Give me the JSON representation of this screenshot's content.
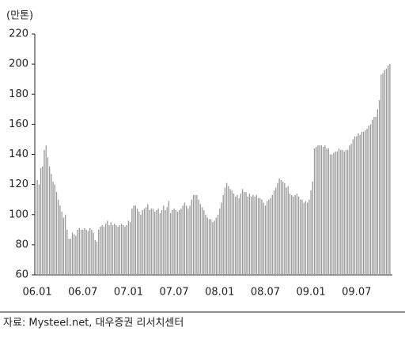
{
  "chart_data": {
    "type": "bar",
    "y_label": "(만톤)",
    "source": "자료: Mysteel.net, 대우증권 리서치센터",
    "color": "#9a9a9a",
    "ylim": [
      60,
      220
    ],
    "yticks": [
      60,
      80,
      100,
      120,
      140,
      160,
      180,
      200,
      220
    ],
    "grid": false,
    "categories": [
      "06.01",
      null,
      null,
      null,
      null,
      null,
      null,
      null,
      null,
      null,
      null,
      null,
      null,
      null,
      null,
      null,
      null,
      null,
      null,
      null,
      null,
      null,
      null,
      null,
      null,
      null,
      "06.07",
      null,
      null,
      null,
      null,
      null,
      null,
      null,
      null,
      null,
      null,
      null,
      null,
      null,
      null,
      null,
      null,
      null,
      null,
      null,
      null,
      null,
      null,
      null,
      null,
      null,
      "07.01",
      null,
      null,
      null,
      null,
      null,
      null,
      null,
      null,
      null,
      null,
      null,
      null,
      null,
      null,
      null,
      null,
      null,
      null,
      null,
      null,
      null,
      null,
      null,
      null,
      null,
      "07.07",
      null,
      null,
      null,
      null,
      null,
      null,
      null,
      null,
      null,
      null,
      null,
      null,
      null,
      null,
      null,
      null,
      null,
      null,
      null,
      null,
      null,
      null,
      null,
      null,
      null,
      "08.01",
      null,
      null,
      null,
      null,
      null,
      null,
      null,
      null,
      null,
      null,
      null,
      null,
      null,
      null,
      null,
      null,
      null,
      null,
      null,
      null,
      null,
      null,
      null,
      null,
      null,
      "08.07",
      null,
      null,
      null,
      null,
      null,
      null,
      null,
      null,
      null,
      null,
      null,
      null,
      null,
      null,
      null,
      null,
      null,
      null,
      null,
      null,
      null,
      null,
      null,
      null,
      null,
      "09.01",
      null,
      null,
      null,
      null,
      null,
      null,
      null,
      null,
      null,
      null,
      null,
      null,
      null,
      null,
      null,
      null,
      null,
      null,
      null,
      null,
      null,
      null,
      null,
      null,
      null,
      "09.07",
      null,
      null,
      null,
      null,
      null,
      null,
      null,
      null,
      null,
      null,
      null,
      null,
      null,
      null,
      null,
      null,
      null,
      null,
      null
    ],
    "values": [
      123,
      120,
      131,
      132,
      143,
      146,
      138,
      132,
      127,
      122,
      120,
      115,
      110,
      106,
      102,
      98,
      100,
      90,
      84,
      84,
      88,
      87,
      86,
      90,
      91,
      90,
      90,
      91,
      90,
      89,
      91,
      90,
      88,
      83,
      82,
      90,
      92,
      93,
      92,
      94,
      96,
      93,
      95,
      93,
      94,
      93,
      92,
      93,
      94,
      93,
      92,
      93,
      96,
      95,
      104,
      106,
      106,
      104,
      102,
      100,
      103,
      104,
      105,
      107,
      103,
      104,
      104,
      102,
      103,
      104,
      101,
      103,
      106,
      103,
      105,
      109,
      101,
      103,
      104,
      103,
      102,
      103,
      104,
      106,
      108,
      106,
      104,
      106,
      110,
      113,
      113,
      113,
      110,
      107,
      105,
      103,
      100,
      98,
      97,
      97,
      95,
      96,
      98,
      100,
      104,
      108,
      113,
      118,
      121,
      119,
      117,
      116,
      114,
      112,
      113,
      111,
      114,
      117,
      115,
      115,
      112,
      114,
      112,
      113,
      112,
      113,
      111,
      111,
      110,
      108,
      106,
      109,
      110,
      111,
      113,
      116,
      118,
      121,
      124,
      123,
      122,
      121,
      118,
      119,
      114,
      113,
      112,
      113,
      114,
      112,
      110,
      110,
      108,
      109,
      108,
      110,
      116,
      122,
      144,
      145,
      146,
      146,
      146,
      145,
      146,
      144,
      144,
      140,
      140,
      141,
      142,
      142,
      144,
      143,
      143,
      142,
      143,
      143,
      146,
      147,
      150,
      152,
      152,
      154,
      153,
      155,
      155,
      156,
      157,
      159,
      160,
      163,
      165,
      165,
      170,
      176,
      193,
      194,
      196,
      197,
      199,
      200
    ]
  }
}
